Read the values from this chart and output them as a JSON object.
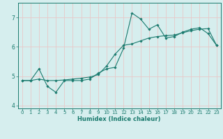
{
  "xlabel": "Humidex (Indice chaleur)",
  "x_values": [
    0,
    1,
    2,
    3,
    4,
    5,
    6,
    7,
    8,
    9,
    10,
    11,
    12,
    13,
    14,
    15,
    16,
    17,
    18,
    19,
    20,
    21,
    22,
    23
  ],
  "line1_y": [
    4.85,
    4.85,
    5.25,
    4.65,
    4.45,
    4.85,
    4.85,
    4.85,
    4.9,
    5.1,
    5.25,
    5.3,
    5.95,
    7.15,
    6.95,
    6.6,
    6.75,
    6.3,
    6.35,
    6.5,
    6.6,
    6.65,
    6.45,
    6.05
  ],
  "line2_y": [
    4.85,
    4.85,
    4.9,
    4.85,
    4.85,
    4.87,
    4.9,
    4.93,
    4.97,
    5.05,
    5.35,
    5.75,
    6.05,
    6.1,
    6.2,
    6.3,
    6.35,
    6.38,
    6.4,
    6.48,
    6.55,
    6.6,
    6.62,
    6.05
  ],
  "line_color": "#1a7a6e",
  "bg_color": "#d6eeee",
  "grid_color": "#e8c8c8",
  "ylim": [
    3.9,
    7.5
  ],
  "xlim": [
    -0.5,
    23.5
  ],
  "yticks": [
    4,
    5,
    6,
    7
  ],
  "xticks": [
    0,
    1,
    2,
    3,
    4,
    5,
    6,
    7,
    8,
    9,
    10,
    11,
    12,
    13,
    14,
    15,
    16,
    17,
    18,
    19,
    20,
    21,
    22,
    23
  ],
  "tick_fontsize": 5.0,
  "xlabel_fontsize": 6.0
}
